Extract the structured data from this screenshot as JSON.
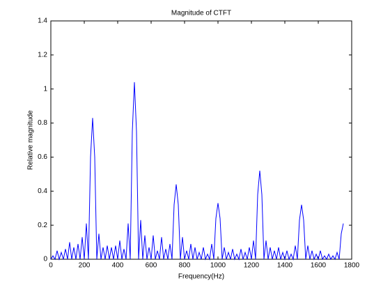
{
  "chart_data": {
    "type": "line",
    "title": "Magnitude of CTFT",
    "x_label": "Frequency(Hz)",
    "y_label": "Relative magnitude",
    "x": [
      0,
      12.5,
      25,
      37.5,
      50,
      62.5,
      75,
      87.5,
      100,
      112.5,
      125,
      137.5,
      150,
      162.5,
      175,
      187.5,
      200,
      212.5,
      225,
      237.5,
      250,
      262.5,
      275,
      287.5,
      300,
      312.5,
      325,
      337.5,
      350,
      362.5,
      375,
      387.5,
      400,
      412.5,
      425,
      437.5,
      450,
      462.5,
      475,
      487.5,
      500,
      512.5,
      525,
      537.5,
      550,
      562.5,
      575,
      587.5,
      600,
      612.5,
      625,
      637.5,
      650,
      662.5,
      675,
      687.5,
      700,
      712.5,
      725,
      737.5,
      750,
      762.5,
      775,
      787.5,
      800,
      812.5,
      825,
      837.5,
      850,
      862.5,
      875,
      887.5,
      900,
      912.5,
      925,
      937.5,
      950,
      962.5,
      975,
      987.5,
      1000,
      1012.5,
      1025,
      1037.5,
      1050,
      1062.5,
      1075,
      1087.5,
      1100,
      1112.5,
      1125,
      1137.5,
      1150,
      1162.5,
      1175,
      1187.5,
      1200,
      1212.5,
      1225,
      1237.5,
      1250,
      1262.5,
      1275,
      1287.5,
      1300,
      1312.5,
      1325,
      1337.5,
      1350,
      1362.5,
      1375,
      1387.5,
      1400,
      1412.5,
      1425,
      1437.5,
      1450,
      1462.5,
      1475,
      1487.5,
      1500,
      1512.5,
      1525,
      1537.5,
      1550,
      1562.5,
      1575,
      1587.5,
      1600,
      1612.5,
      1625,
      1637.5,
      1650,
      1662.5,
      1675,
      1687.5,
      1700,
      1712.5,
      1725,
      1737.5,
      1750
    ],
    "series": [
      {
        "name": "Magnitude",
        "color": "#0000ff",
        "values": [
          0,
          0.02,
          0,
          0.05,
          0,
          0.04,
          0,
          0.06,
          0,
          0.1,
          0,
          0.07,
          0,
          0.09,
          0,
          0.13,
          0,
          0.21,
          0,
          0.6,
          0.83,
          0.6,
          0,
          0.15,
          0,
          0.07,
          0,
          0.08,
          0,
          0.07,
          0,
          0.08,
          0,
          0.11,
          0,
          0.06,
          0,
          0.21,
          0,
          0.75,
          1.04,
          0.75,
          0,
          0.23,
          0,
          0.14,
          0,
          0.07,
          0,
          0.14,
          0,
          0.05,
          0,
          0.13,
          0,
          0.06,
          0,
          0.09,
          0,
          0.32,
          0.44,
          0.32,
          0,
          0.13,
          0,
          0.05,
          0,
          0.09,
          0,
          0.07,
          0,
          0.04,
          0,
          0.07,
          0,
          0.03,
          0,
          0.09,
          0,
          0.24,
          0.33,
          0.24,
          0,
          0.07,
          0,
          0.04,
          0,
          0.06,
          0,
          0.03,
          0,
          0.06,
          0,
          0.04,
          0,
          0.07,
          0,
          0.11,
          0,
          0.38,
          0.52,
          0.38,
          0,
          0.11,
          0,
          0.07,
          0,
          0.05,
          0,
          0.07,
          0,
          0.04,
          0,
          0.05,
          0,
          0.03,
          0,
          0.08,
          0,
          0.23,
          0.32,
          0.23,
          0,
          0.08,
          0,
          0.05,
          0,
          0.03,
          0,
          0.05,
          0,
          0.02,
          0,
          0.03,
          0,
          0.02,
          0,
          0.04,
          0,
          0.15,
          0.21
        ]
      }
    ],
    "xlim": [
      0,
      1800
    ],
    "xticks": [
      0,
      200,
      400,
      600,
      800,
      1000,
      1200,
      1400,
      1600,
      1800
    ],
    "ylim": [
      0,
      1.4
    ],
    "yticks": [
      0,
      0.2,
      0.4,
      0.6,
      0.8,
      1,
      1.2,
      1.4
    ],
    "grid": false
  }
}
